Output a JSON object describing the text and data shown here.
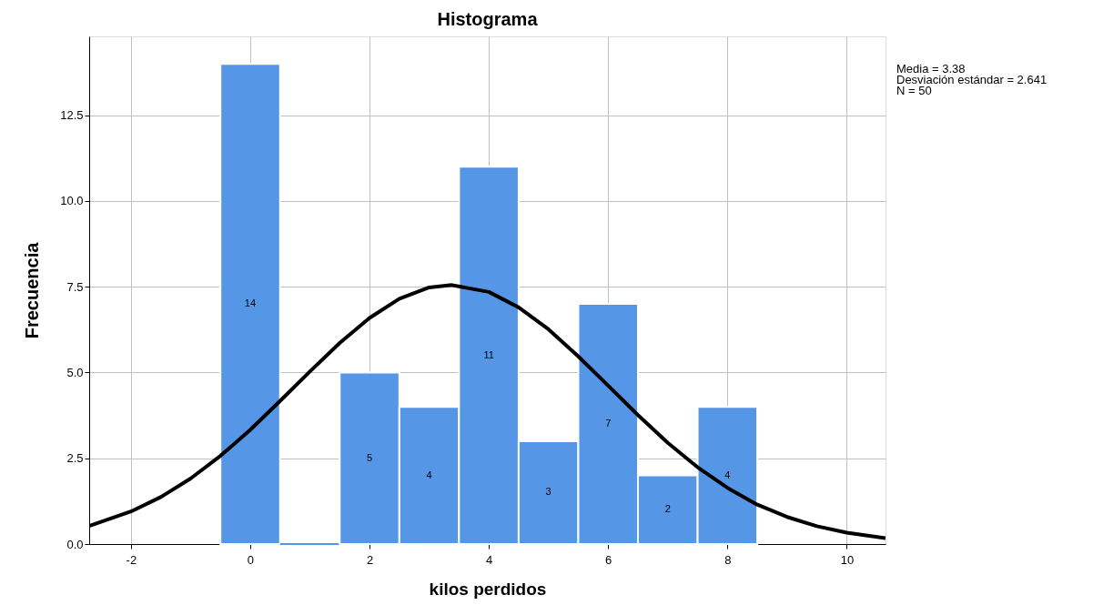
{
  "chart_data": {
    "type": "histogram",
    "title": "Histograma",
    "xlabel": "kilos perdidos",
    "ylabel": "Frecuencia",
    "bins": [
      -0.5,
      0.5,
      1.5,
      2.5,
      3.5,
      4.5,
      5.5,
      6.5,
      7.5,
      8.5
    ],
    "values": [
      14,
      0,
      5,
      4,
      11,
      3,
      7,
      2,
      4
    ],
    "color": "#5596e6",
    "value_labels": [
      "14",
      null,
      "5",
      "4",
      "11",
      "3",
      "7",
      "2",
      "4"
    ],
    "series": [
      {
        "type": "line",
        "color": "#000000",
        "x": [
          -2.7,
          -2,
          -1.5,
          -1,
          -0.5,
          0,
          0.5,
          1,
          1.5,
          2,
          2.5,
          3,
          3.38,
          4,
          4.5,
          5,
          5.5,
          6,
          6.5,
          7,
          7.5,
          8,
          8.5,
          9,
          9.5,
          10,
          10.65
        ],
        "values": [
          0.53,
          0.95,
          1.37,
          1.91,
          2.57,
          3.33,
          4.17,
          5.03,
          5.86,
          6.59,
          7.15,
          7.48,
          7.55,
          7.35,
          6.9,
          6.26,
          5.47,
          4.62,
          3.76,
          2.95,
          2.24,
          1.64,
          1.15,
          0.79,
          0.52,
          0.33,
          0.17
        ]
      }
    ],
    "xlim": [
      -2.7,
      10.65
    ],
    "xticks": [
      -2,
      0,
      2,
      4,
      6,
      8,
      10
    ],
    "ylim": [
      0,
      14.8
    ],
    "yticks": [
      {
        "value": 0,
        "label": "0.0"
      },
      {
        "value": 2.5,
        "label": "2.5"
      },
      {
        "value": 5,
        "label": "5.0"
      },
      {
        "value": 7.5,
        "label": "7.5"
      },
      {
        "value": 10,
        "label": "10.0"
      },
      {
        "value": 12.5,
        "label": "12.5"
      }
    ],
    "grid": true,
    "marker": "none",
    "line_style": "solid",
    "annotations": [
      "Media = 3.38",
      "Desviación estándar = 2.641",
      "N = 50"
    ]
  }
}
